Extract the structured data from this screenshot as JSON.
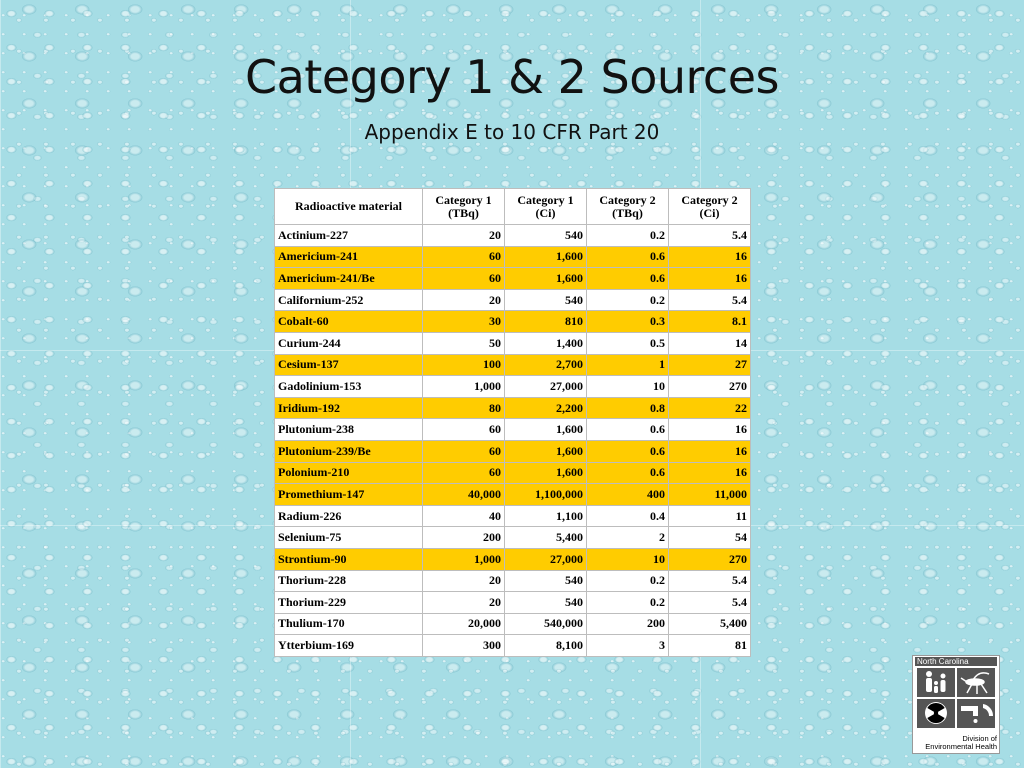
{
  "title": "Category 1 & 2 Sources",
  "subtitle": "Appendix E to 10 CFR Part 20",
  "table": {
    "headers": [
      "Radioactive material",
      "Category 1\n(TBq)",
      "Category 1\n(Ci)",
      "Category 2\n(TBq)",
      "Category 2\n(Ci)"
    ],
    "rows": [
      {
        "cells": [
          "Actinium-227",
          "20",
          "540",
          "0.2",
          "5.4"
        ],
        "highlight": false
      },
      {
        "cells": [
          "Americium-241",
          "60",
          "1,600",
          "0.6",
          "16"
        ],
        "highlight": true
      },
      {
        "cells": [
          "Americium-241/Be",
          "60",
          "1,600",
          "0.6",
          "16"
        ],
        "highlight": true
      },
      {
        "cells": [
          "Californium-252",
          "20",
          "540",
          "0.2",
          "5.4"
        ],
        "highlight": false
      },
      {
        "cells": [
          "Cobalt-60",
          "30",
          "810",
          "0.3",
          "8.1"
        ],
        "highlight": true
      },
      {
        "cells": [
          "Curium-244",
          "50",
          "1,400",
          "0.5",
          "14"
        ],
        "highlight": false
      },
      {
        "cells": [
          "Cesium-137",
          "100",
          "2,700",
          "1",
          "27"
        ],
        "highlight": true
      },
      {
        "cells": [
          "Gadolinium-153",
          "1,000",
          "27,000",
          "10",
          "270"
        ],
        "highlight": false
      },
      {
        "cells": [
          "Iridium-192",
          "80",
          "2,200",
          "0.8",
          "22"
        ],
        "highlight": true
      },
      {
        "cells": [
          "Plutonium-238",
          "60",
          "1,600",
          "0.6",
          "16"
        ],
        "highlight": false
      },
      {
        "cells": [
          "Plutonium-239/Be",
          "60",
          "1,600",
          "0.6",
          "16"
        ],
        "highlight": true
      },
      {
        "cells": [
          "Polonium-210",
          "60",
          "1,600",
          "0.6",
          "16"
        ],
        "highlight": true
      },
      {
        "cells": [
          "Promethium-147",
          "40,000",
          "1,100,000",
          "400",
          "11,000"
        ],
        "highlight": true
      },
      {
        "cells": [
          "Radium-226",
          "40",
          "1,100",
          "0.4",
          "11"
        ],
        "highlight": false
      },
      {
        "cells": [
          "Selenium-75",
          "200",
          "5,400",
          "2",
          "54"
        ],
        "highlight": false
      },
      {
        "cells": [
          "Strontium-90",
          "1,000",
          "27,000",
          "10",
          "270"
        ],
        "highlight": true
      },
      {
        "cells": [
          "Thorium-228",
          "20",
          "540",
          "0.2",
          "5.4"
        ],
        "highlight": false
      },
      {
        "cells": [
          "Thorium-229",
          "20",
          "540",
          "0.2",
          "5.4"
        ],
        "highlight": false
      },
      {
        "cells": [
          "Thulium-170",
          "20,000",
          "540,000",
          "200",
          "5,400"
        ],
        "highlight": false
      },
      {
        "cells": [
          "Ytterbium-169",
          "300",
          "8,100",
          "3",
          "81"
        ],
        "highlight": false
      }
    ]
  },
  "logo": {
    "top_text": "North Carolina",
    "bottom_line1": "Division of",
    "bottom_line2": "Environmental Health",
    "icons": [
      "family-icon",
      "mosquito-icon",
      "radiation-icon",
      "water-faucet-icon"
    ]
  },
  "colors": {
    "highlight": "#ffcc00",
    "background": "#a6dde5"
  }
}
